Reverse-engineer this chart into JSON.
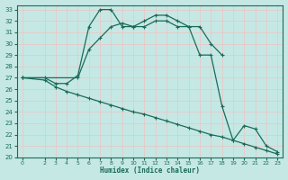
{
  "xlabel": "Humidex (Indice chaleur)",
  "background_color": "#c5e8e4",
  "grid_color": "#e8c8c8",
  "line_color": "#1a6b5a",
  "xlim": [
    -0.5,
    23.5
  ],
  "ylim": [
    20,
    33.4
  ],
  "xticks": [
    0,
    2,
    3,
    4,
    5,
    6,
    7,
    8,
    9,
    10,
    11,
    12,
    13,
    14,
    15,
    16,
    17,
    18,
    19,
    20,
    21,
    22,
    23
  ],
  "yticks": [
    20,
    21,
    22,
    23,
    24,
    25,
    26,
    27,
    28,
    29,
    30,
    31,
    32,
    33
  ],
  "curve1_x": [
    0,
    2,
    3,
    4,
    5,
    6,
    7,
    8,
    9,
    10,
    11,
    12,
    13,
    14,
    15,
    16,
    17,
    18,
    19,
    20,
    21,
    22,
    23
  ],
  "curve1_y": [
    27,
    27,
    26.5,
    26.5,
    27.2,
    31.5,
    33,
    33,
    31.5,
    31.5,
    32,
    32.5,
    32.5,
    32,
    31.5,
    29,
    29,
    24.5,
    21.5,
    22.8,
    22.5,
    21.0,
    20.5
  ],
  "curve2_x": [
    0,
    5,
    6,
    7,
    8,
    9,
    10,
    11,
    12,
    13,
    14,
    15,
    16,
    17,
    18
  ],
  "curve2_y": [
    27,
    27,
    29.5,
    30.5,
    31.5,
    31.8,
    31.5,
    31.5,
    32.0,
    32.0,
    31.5,
    31.5,
    31.5,
    30.0,
    29.0
  ],
  "curve3_x": [
    0,
    2,
    3,
    4,
    5,
    6,
    7,
    8,
    9,
    10,
    11,
    12,
    13,
    14,
    15,
    16,
    17,
    18,
    19,
    20,
    21,
    22,
    23
  ],
  "curve3_y": [
    27,
    26.8,
    26.2,
    25.8,
    25.5,
    25.2,
    24.9,
    24.6,
    24.3,
    24.0,
    23.8,
    23.5,
    23.2,
    22.9,
    22.6,
    22.3,
    22.0,
    21.8,
    21.5,
    21.2,
    20.9,
    20.6,
    20.3
  ]
}
